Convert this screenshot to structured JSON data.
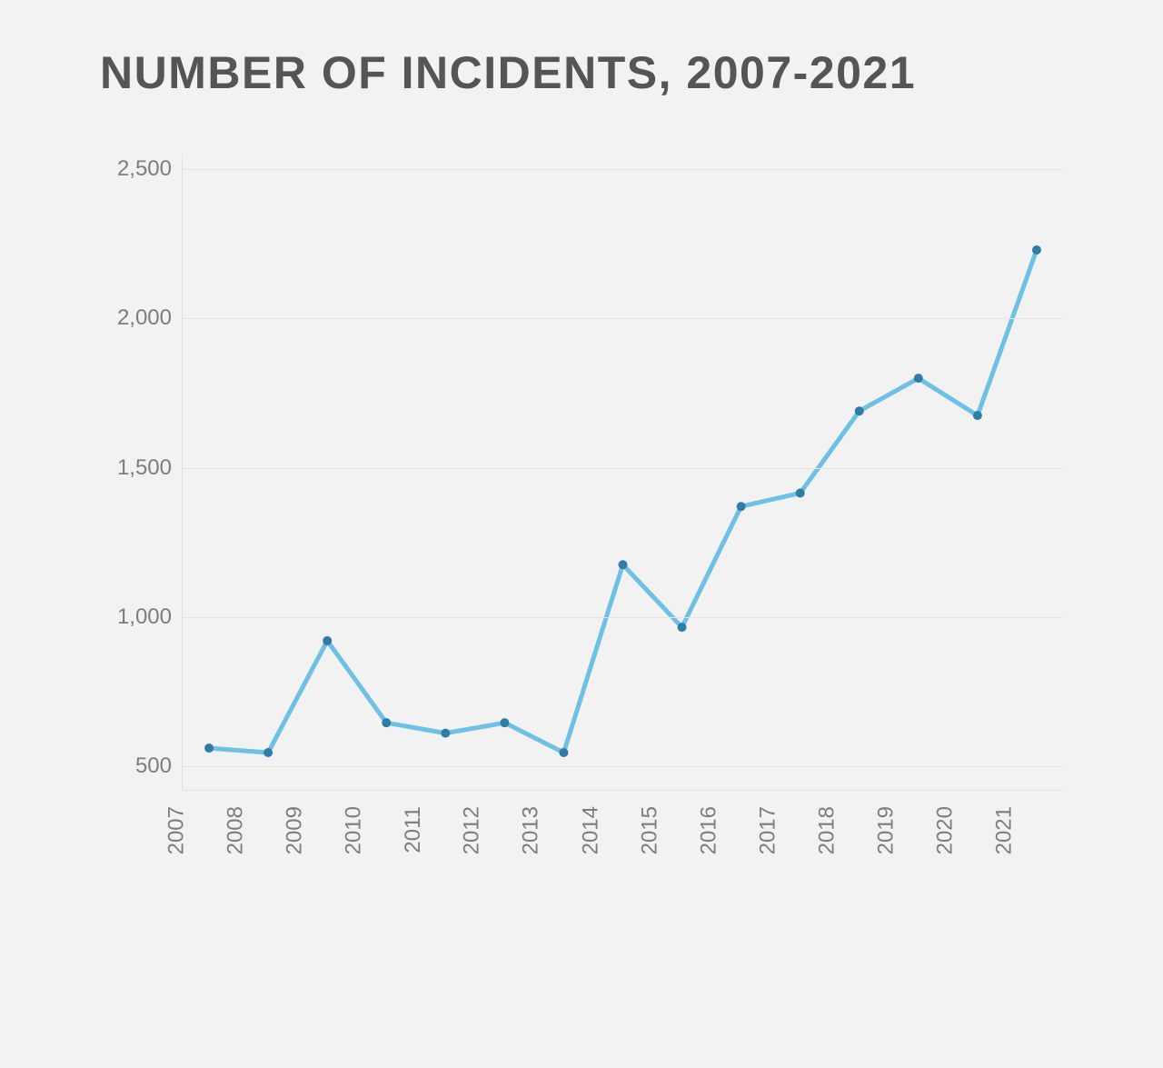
{
  "chart": {
    "type": "line",
    "title": "NUMBER OF INCIDENTS, 2007-2021",
    "title_color": "#555558",
    "title_fontsize": 50,
    "background_color": "#f2f2f2",
    "plot_background": "#f2f2f2",
    "grid_color": "#e4e4e4",
    "axis_color": "#e2e2e2",
    "tick_label_color": "#7d7d7d",
    "tick_label_fontsize": 24,
    "x": {
      "categories": [
        "2007",
        "2008",
        "2009",
        "2010",
        "2011",
        "2012",
        "2013",
        "2014",
        "2015",
        "2016",
        "2017",
        "2018",
        "2019",
        "2020",
        "2021"
      ],
      "rotation": -90
    },
    "y": {
      "min": 420,
      "max": 2550,
      "ticks": [
        500,
        1000,
        1500,
        2000,
        2500
      ]
    },
    "series": {
      "name": "Incidents",
      "color": "#6ec1e4",
      "line_width": 5,
      "marker": {
        "shape": "circle",
        "radius": 5,
        "fill": "#2f7ca6",
        "stroke": "none"
      },
      "values": [
        560,
        545,
        920,
        645,
        610,
        645,
        545,
        1175,
        965,
        1370,
        1415,
        1690,
        1800,
        1675,
        2230
      ]
    }
  }
}
